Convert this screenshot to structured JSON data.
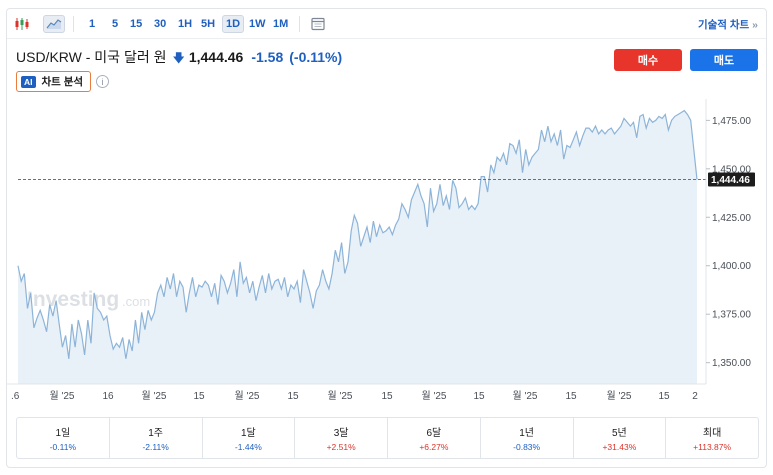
{
  "toolbar": {
    "timeframes": [
      "1",
      "5",
      "15",
      "30",
      "1H",
      "5H",
      "1D",
      "1W",
      "1M"
    ],
    "active_timeframe": "1D",
    "tech_chart_label": "기술적 차트",
    "tech_chart_chevron": "»"
  },
  "header": {
    "pair": "USD/KRW - 미국 달러 원",
    "arrow": "🡇",
    "price": "1,444.46",
    "change": "-1.58",
    "change_pct": "(-0.11%)"
  },
  "ai": {
    "badge": "AI",
    "label": "차트 분석",
    "info": "i"
  },
  "buttons": {
    "buy": "매수",
    "sell": "매도"
  },
  "watermark": {
    "brand": "Investing",
    "suffix": ".com"
  },
  "chart_data": {
    "type": "area",
    "y_ticks": [
      "1,475.00",
      "1,450.00",
      "1,425.00",
      "1,400.00",
      "1,375.00",
      "1,350.00"
    ],
    "y_tick_values": [
      1475,
      1450,
      1425,
      1400,
      1375,
      1350
    ],
    "ylim": [
      1339,
      1486
    ],
    "x_ticks": [
      ".6",
      "월 '25",
      "16",
      "월 '25",
      "15",
      "월 '25",
      "15",
      "월 '25",
      "15",
      "월 '25",
      "15",
      "월 '25",
      "15",
      "월 '25",
      "15",
      "2"
    ],
    "current_price_label": "1,444.46",
    "current_price": 1444.46,
    "series": [
      {
        "values": [
          1400,
          1392,
          1396,
          1378,
          1386,
          1368,
          1373,
          1377,
          1372,
          1366,
          1380,
          1374,
          1382,
          1370,
          1358,
          1364,
          1352,
          1370,
          1358,
          1372,
          1365,
          1354,
          1372,
          1360,
          1386,
          1378,
          1376,
          1372,
          1374,
          1364,
          1357,
          1360,
          1358,
          1363,
          1352,
          1362,
          1356,
          1372,
          1360,
          1376,
          1367,
          1377,
          1372,
          1376,
          1386,
          1390,
          1384,
          1394,
          1388,
          1396,
          1384,
          1392,
          1389,
          1376,
          1386,
          1394,
          1384,
          1390,
          1389,
          1392,
          1390,
          1384,
          1391,
          1380,
          1395,
          1392,
          1386,
          1391,
          1398,
          1384,
          1402,
          1391,
          1394,
          1386,
          1392,
          1382,
          1389,
          1395,
          1386,
          1396,
          1388,
          1392,
          1393,
          1388,
          1394,
          1384,
          1390,
          1388,
          1392,
          1381,
          1398,
          1392,
          1386,
          1378,
          1387,
          1390,
          1398,
          1392,
          1388,
          1396,
          1408,
          1402,
          1412,
          1396,
          1402,
          1418,
          1426,
          1422,
          1410,
          1415,
          1420,
          1412,
          1423,
          1415,
          1421,
          1417,
          1418,
          1420,
          1416,
          1421,
          1424,
          1432,
          1429,
          1425,
          1434,
          1438,
          1442,
          1436,
          1432,
          1420,
          1440,
          1428,
          1432,
          1442,
          1431,
          1436,
          1429,
          1444,
          1440,
          1430,
          1432,
          1435,
          1429,
          1431,
          1429,
          1432,
          1446,
          1446,
          1438,
          1452,
          1448,
          1456,
          1454,
          1458,
          1452,
          1463,
          1462,
          1458,
          1465,
          1448,
          1460,
          1452,
          1456,
          1458,
          1460,
          1470,
          1464,
          1472,
          1464,
          1468,
          1462,
          1470,
          1455,
          1462,
          1461,
          1465,
          1469,
          1462,
          1467,
          1471,
          1471,
          1469,
          1472,
          1468,
          1470,
          1468,
          1470,
          1471,
          1468,
          1470,
          1472,
          1476,
          1474,
          1472,
          1474,
          1466,
          1477,
          1478,
          1471,
          1476,
          1474,
          1475,
          1477,
          1476,
          1478,
          1470,
          1475,
          1477,
          1478,
          1479,
          1480,
          1478,
          1475,
          1460,
          1444.46
        ]
      }
    ],
    "grid": false
  },
  "performance": [
    {
      "label": "1일",
      "value": "-0.11%",
      "sign": "neg"
    },
    {
      "label": "1주",
      "value": "-2.11%",
      "sign": "neg"
    },
    {
      "label": "1달",
      "value": "-1.44%",
      "sign": "neg"
    },
    {
      "label": "3달",
      "value": "+2.51%",
      "sign": "pos"
    },
    {
      "label": "6달",
      "value": "+6.27%",
      "sign": "pos"
    },
    {
      "label": "1년",
      "value": "-0.83%",
      "sign": "neg"
    },
    {
      "label": "5년",
      "value": "+31.43%",
      "sign": "pos"
    },
    {
      "label": "최대",
      "value": "+113.87%",
      "sign": "pos"
    }
  ],
  "colors": {
    "line": "#8db4d8",
    "fill": "#e8f0f8",
    "ref_line": "#d64545",
    "price_tag": "#1c1c1c",
    "buy": "#e8352c",
    "sell": "#1a73e8"
  }
}
